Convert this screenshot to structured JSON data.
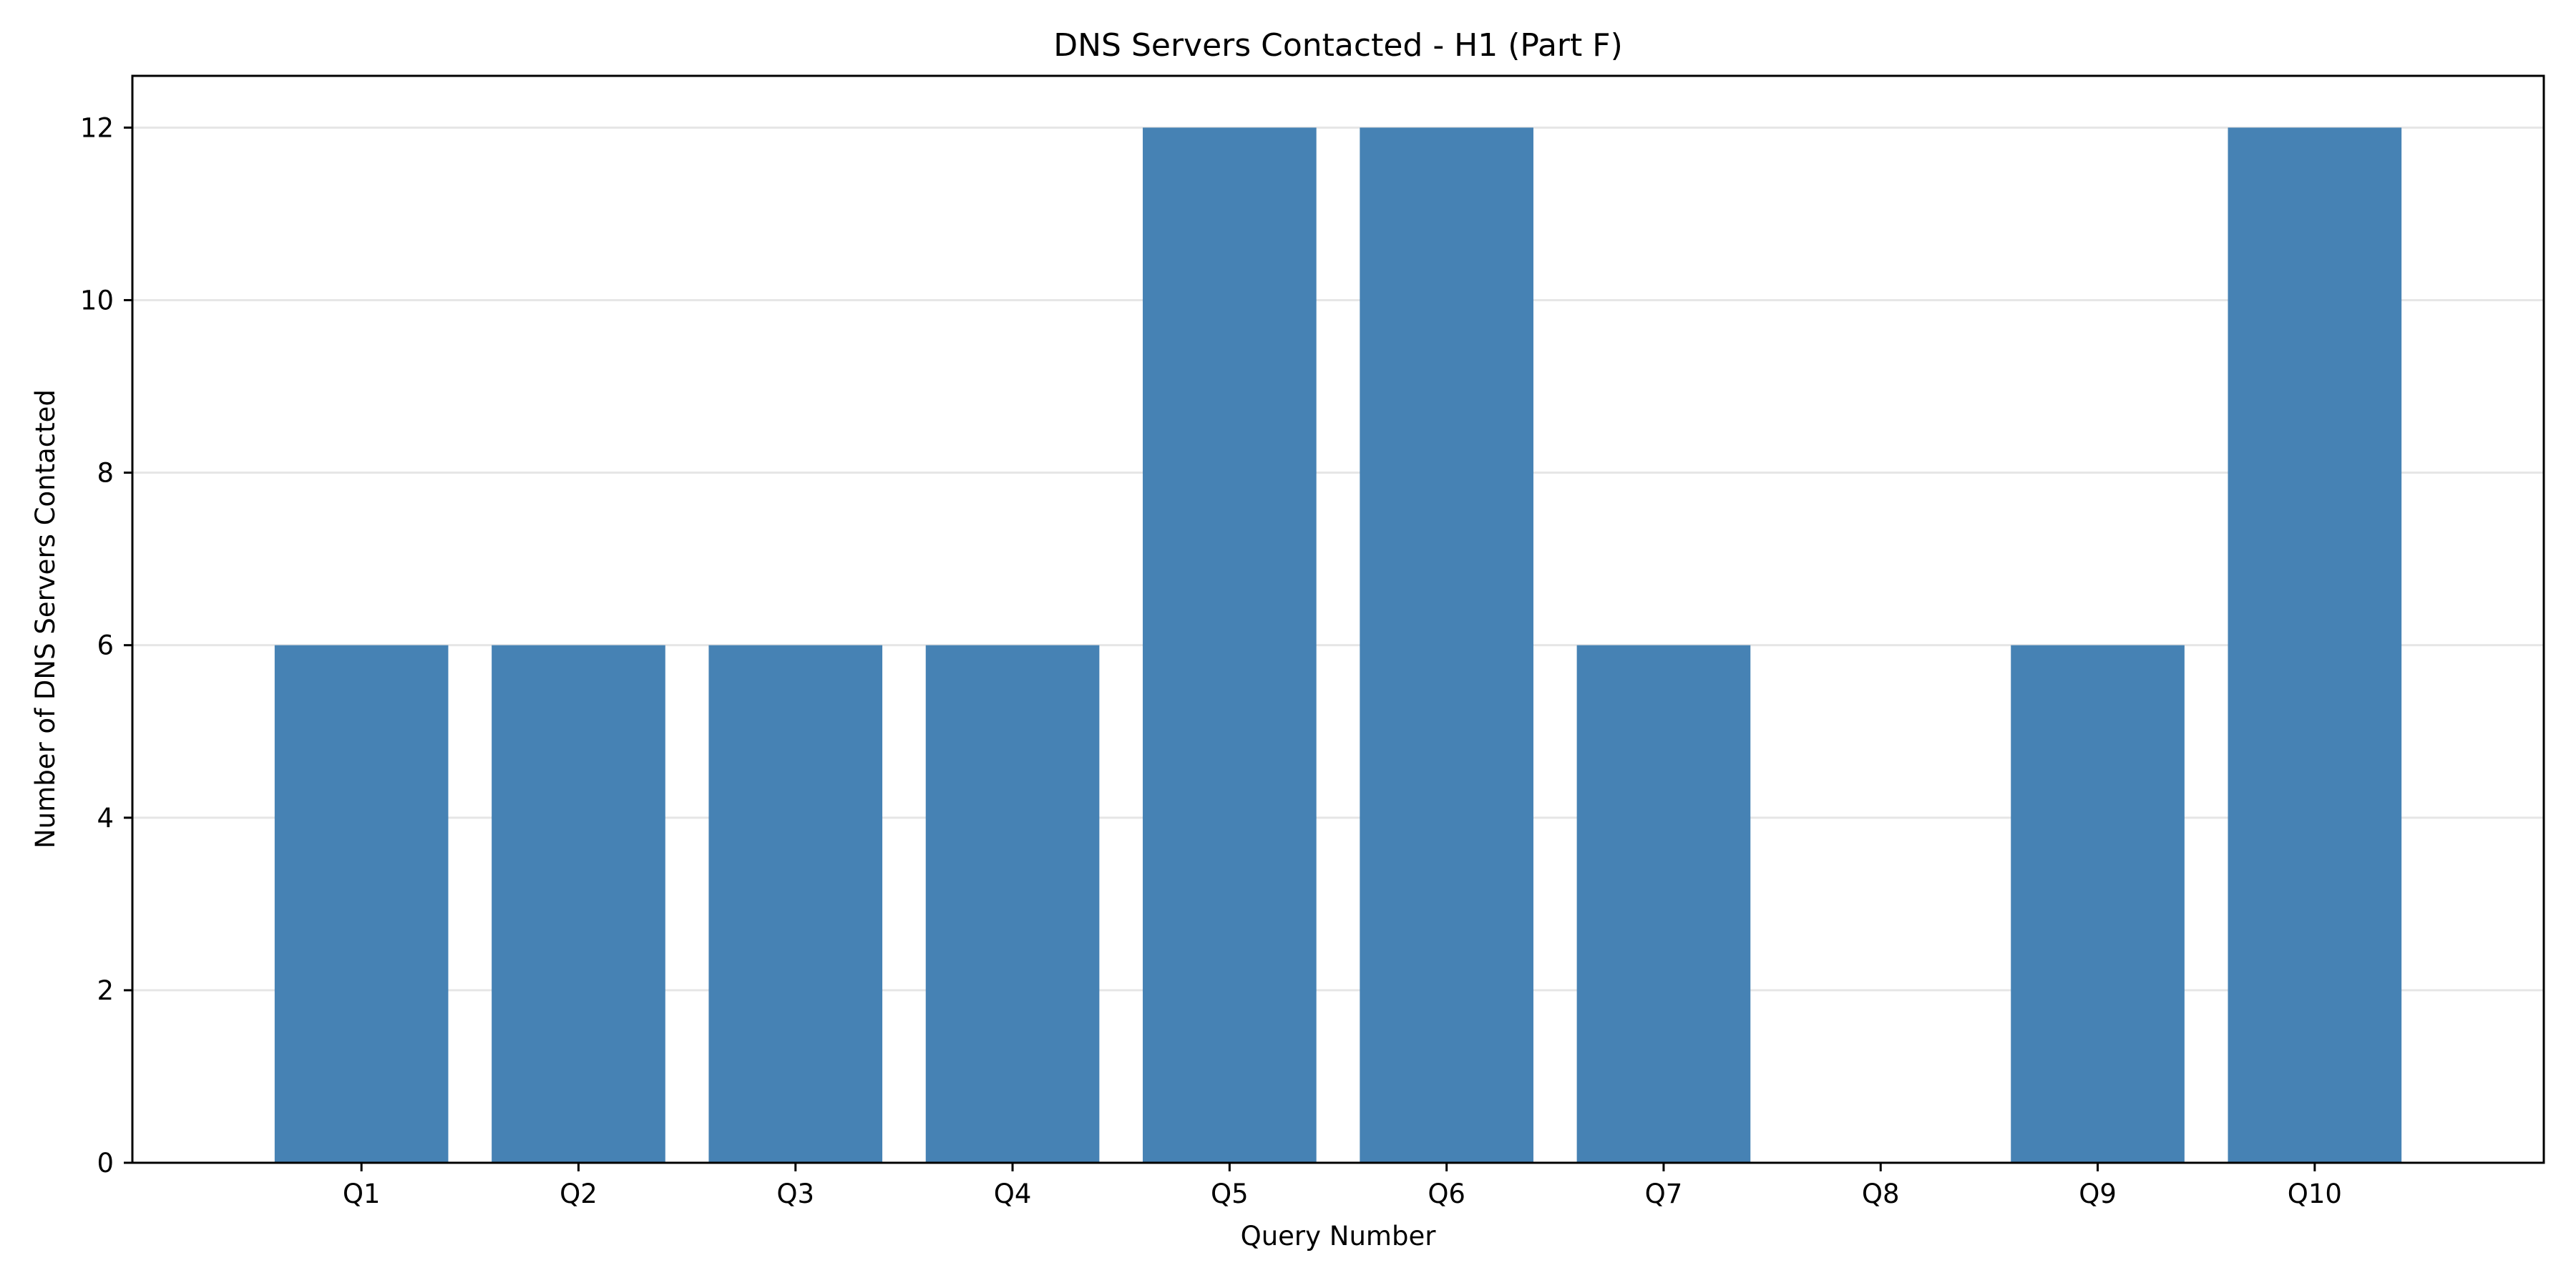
{
  "chart_data": {
    "type": "bar",
    "title": "DNS Servers Contacted - H1 (Part F)",
    "xlabel": "Query Number",
    "ylabel": "Number of DNS Servers Contacted",
    "categories": [
      "Q1",
      "Q2",
      "Q3",
      "Q4",
      "Q5",
      "Q6",
      "Q7",
      "Q8",
      "Q9",
      "Q10"
    ],
    "values": [
      6,
      6,
      6,
      6,
      12,
      12,
      6,
      0,
      6,
      12
    ],
    "ylim": [
      0,
      12.6
    ],
    "yticks": [
      0,
      2,
      4,
      6,
      8,
      10,
      12
    ],
    "grid": "horizontal",
    "legend": "none",
    "colors": {
      "bar": "#4682b4",
      "grid": "#e6e6e6",
      "axis": "#000000"
    }
  }
}
